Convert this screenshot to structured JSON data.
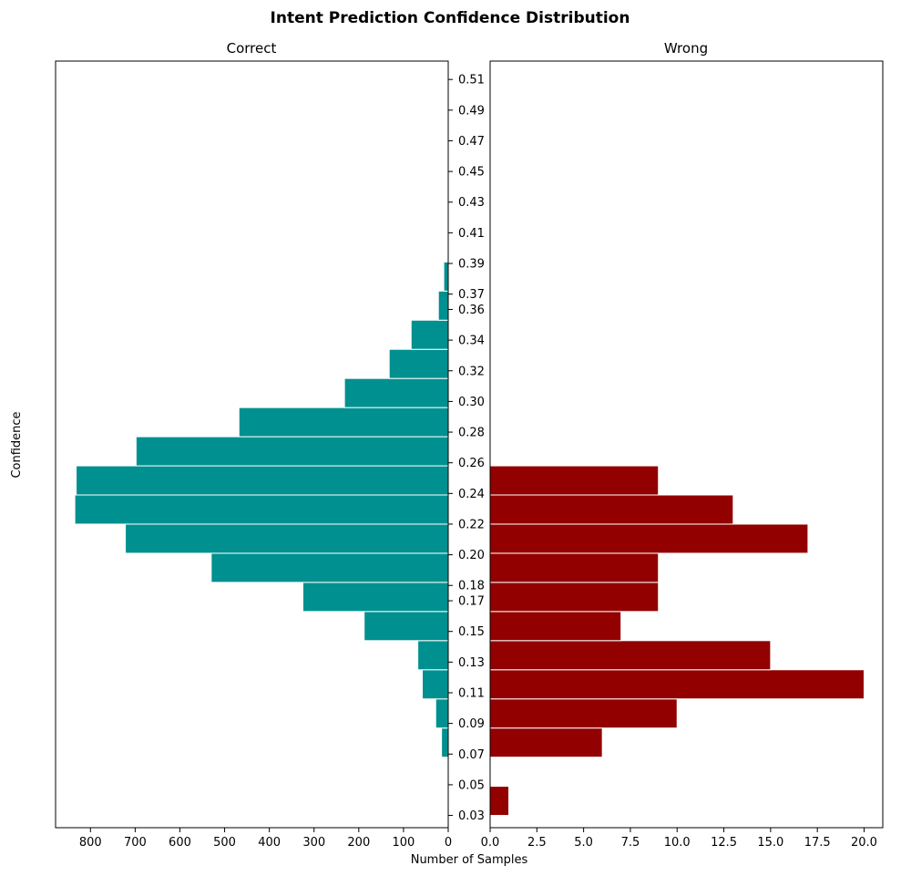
{
  "chart_data": {
    "type": "bar",
    "orientation": "horizontal",
    "title": "Intent Prediction Confidence Distribution",
    "xlabel": "Number of Samples",
    "ylabel": "Confidence",
    "y_ticks": [
      "0.03",
      "0.05",
      "0.07",
      "0.09",
      "0.11",
      "0.13",
      "0.15",
      "0.17",
      "0.18",
      "0.20",
      "0.22",
      "0.24",
      "0.26",
      "0.28",
      "0.30",
      "0.32",
      "0.34",
      "0.36",
      "0.37",
      "0.39",
      "0.41",
      "0.43",
      "0.45",
      "0.47",
      "0.49",
      "0.51"
    ],
    "y_tick_values": [
      0.03,
      0.05,
      0.07,
      0.09,
      0.11,
      0.13,
      0.15,
      0.17,
      0.18,
      0.2,
      0.22,
      0.24,
      0.26,
      0.28,
      0.3,
      0.32,
      0.34,
      0.36,
      0.37,
      0.39,
      0.41,
      0.43,
      0.45,
      0.47,
      0.49,
      0.51
    ],
    "ylim": [
      0.022,
      0.522
    ],
    "bin_width": 0.019,
    "panels": [
      {
        "name": "Correct",
        "color": "#009090",
        "edgecolor": "#ffffff",
        "inverted_x": true,
        "xlim": [
          0,
          878
        ],
        "x_ticks": [
          0,
          100,
          200,
          300,
          400,
          500,
          600,
          700,
          800
        ],
        "x_tick_labels": [
          "0",
          "100",
          "200",
          "300",
          "400",
          "500",
          "600",
          "700",
          "800"
        ],
        "bins": [
          {
            "start": 0.03,
            "count": 0
          },
          {
            "start": 0.049,
            "count": 2
          },
          {
            "start": 0.068,
            "count": 15
          },
          {
            "start": 0.087,
            "count": 28
          },
          {
            "start": 0.106,
            "count": 58
          },
          {
            "start": 0.125,
            "count": 68
          },
          {
            "start": 0.144,
            "count": 188
          },
          {
            "start": 0.163,
            "count": 325
          },
          {
            "start": 0.182,
            "count": 530
          },
          {
            "start": 0.201,
            "count": 722
          },
          {
            "start": 0.22,
            "count": 835
          },
          {
            "start": 0.239,
            "count": 832
          },
          {
            "start": 0.258,
            "count": 698
          },
          {
            "start": 0.277,
            "count": 468
          },
          {
            "start": 0.296,
            "count": 232
          },
          {
            "start": 0.315,
            "count": 132
          },
          {
            "start": 0.334,
            "count": 83
          },
          {
            "start": 0.353,
            "count": 22
          },
          {
            "start": 0.372,
            "count": 10
          }
        ]
      },
      {
        "name": "Wrong",
        "color": "#920000",
        "edgecolor": "#ffffff",
        "inverted_x": false,
        "xlim": [
          0,
          21
        ],
        "x_ticks": [
          0,
          2.5,
          5,
          7.5,
          10,
          12.5,
          15,
          17.5,
          20
        ],
        "x_tick_labels": [
          "0.0",
          "2.5",
          "5.0",
          "7.5",
          "10.0",
          "12.5",
          "15.0",
          "17.5",
          "20.0"
        ],
        "bins": [
          {
            "start": 0.03,
            "count": 1
          },
          {
            "start": 0.049,
            "count": 0
          },
          {
            "start": 0.068,
            "count": 6
          },
          {
            "start": 0.087,
            "count": 10
          },
          {
            "start": 0.106,
            "count": 20
          },
          {
            "start": 0.125,
            "count": 15
          },
          {
            "start": 0.144,
            "count": 7
          },
          {
            "start": 0.163,
            "count": 9
          },
          {
            "start": 0.182,
            "count": 9
          },
          {
            "start": 0.201,
            "count": 17
          },
          {
            "start": 0.22,
            "count": 13
          },
          {
            "start": 0.239,
            "count": 9
          }
        ]
      }
    ],
    "grid": false,
    "legend": "none"
  }
}
